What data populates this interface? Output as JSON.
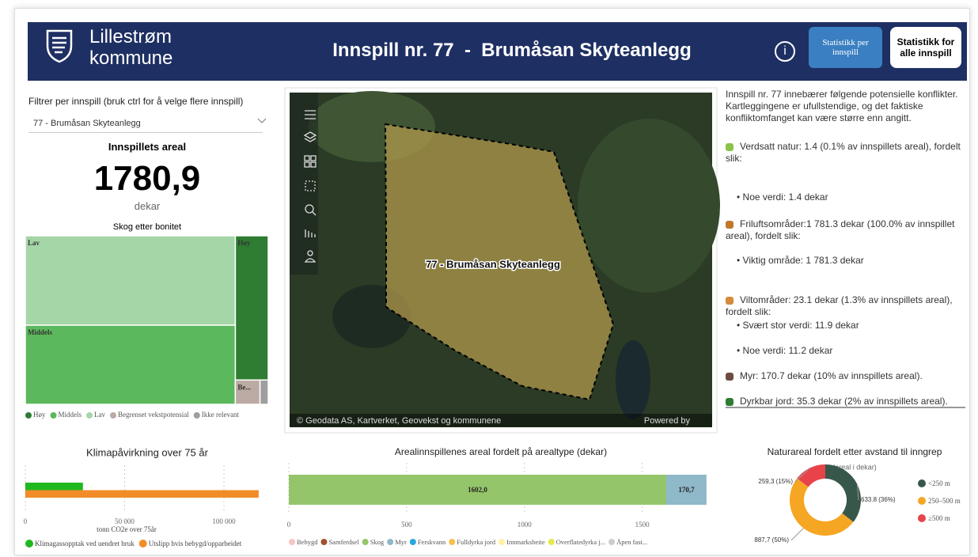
{
  "header": {
    "logo_top": "Lillestrøm",
    "logo_bottom": "kommune",
    "title": "Innspill nr. 77  -  Brumåsan Skyteanlegg",
    "info_icon": "i",
    "buttons": [
      "Statistikk per innspill",
      "Statistikk for alle innspill"
    ]
  },
  "filter": {
    "label": "Filtrer per innspill (bruk ctrl for å velge flere innspill)",
    "selected": "77 - Brumåsan Skyteanlegg"
  },
  "area_card": {
    "title": "Innspillets areal",
    "value": "1780,9",
    "unit": "dekar"
  },
  "map": {
    "label": "77  - Brumåsan Skyteanlegg",
    "attribution": "© Geodata AS, Kartverket, Geovekst og kommunene",
    "powered": "Powered by"
  },
  "conflicts": {
    "intro": "Innspill nr. 77 innebærer følgende potensielle konflikter. Kartleggingene er ufullstendige, og det faktiske konfliktomfanget kan være større enn angitt.",
    "items": [
      {
        "heading": "Verdsatt natur: 1.4 (0.1% av innspillets areal), fordelt slik:",
        "details": [
          "• Noe verdi: 1.4 dekar"
        ]
      },
      {
        "heading": "Friluftsområder:1 781.3 dekar (100.0% av innspillet areal), fordelt slik:",
        "details": [
          "• Viktig område: 1 781.3 dekar"
        ]
      },
      {
        "heading": "Viltområder: 23.1 dekar (1.3% av innspillets areal), fordelt slik:",
        "details": [
          "• Svært stor verdi: 11.9 dekar",
          "• Noe verdi: 11.2 dekar"
        ]
      },
      {
        "heading": "Myr: 170.7 dekar (10% av innspillets areal).",
        "details": []
      },
      {
        "heading": "Dyrkbar jord: 35.3 dekar (2% av innspillets areal).",
        "details": []
      }
    ]
  },
  "chart_data": [
    {
      "type": "treemap",
      "title": "Skog etter bonitet",
      "categories": [
        "Høy",
        "Middels",
        "Lav",
        "Begrenset vekstpotensial",
        "Ikke relevant"
      ],
      "tile_labels": [
        "Høy",
        "Middels",
        "Lav",
        "Be...",
        null
      ],
      "values": [
        190,
        665,
        750,
        24,
        8
      ],
      "colors": [
        "#2e7d32",
        "#5cb85c",
        "#a5d6a7",
        "#bcaaa4",
        "#9e9e9e"
      ]
    },
    {
      "type": "hbar",
      "title": "Klimapåvirkning over 75 år",
      "xlabel": "tonn CO2e over 75år",
      "series": [
        {
          "name": "Klimagassopptak ved uendret bruk",
          "color": "#1fb81f",
          "values": [
            29000
          ]
        },
        {
          "name": "Utslipp hvis bebygd/opparbeidet",
          "color": "#f28c28",
          "values": [
            117500
          ]
        }
      ],
      "xlim": [
        0,
        122000
      ],
      "xticks": [
        0,
        {
          "value": 50000,
          "label": "50 000"
        },
        {
          "value": 100000,
          "label": "100 000"
        }
      ],
      "grid": true
    },
    {
      "type": "stacked_hbar",
      "title": "Arealinnspillenes areal fordelt på arealtype (dekar)",
      "series": [
        {
          "name": "Bebygd",
          "color": "#f6c6c6",
          "values": [
            0
          ]
        },
        {
          "name": "Samferdsel",
          "color": "#a0522d",
          "values": [
            0
          ]
        },
        {
          "name": "Skog",
          "color": "#95c56a",
          "values": [
            1602.0
          ],
          "value_labels": [
            "1602,0"
          ]
        },
        {
          "name": "Myr",
          "color": "#8fb8c8",
          "values": [
            170.7
          ],
          "value_labels": [
            "170,7"
          ]
        },
        {
          "name": "Ferskvann",
          "color": "#29a8e0",
          "values": [
            0
          ]
        },
        {
          "name": "Fulldyrka jord",
          "color": "#f5c04a",
          "values": [
            0
          ]
        },
        {
          "name": "Innmarksbeite",
          "color": "#fff1a0",
          "values": [
            0
          ]
        },
        {
          "name": "Overflatedyrka j...",
          "color": "#e8e84a",
          "values": [
            0
          ]
        },
        {
          "name": "Åpen fast...",
          "color": "#cccccc",
          "values": [
            0
          ]
        }
      ],
      "xlim": [
        0,
        1800
      ],
      "xticks": [
        0,
        500,
        1000,
        1500
      ],
      "grid": true
    },
    {
      "type": "donut",
      "title": "Naturareal fordelt etter avstand til inngrep",
      "subtitle": "(areal i dekar)",
      "categories": [
        "<250 m",
        "250–500 m",
        "≥500 m"
      ],
      "values": [
        633.8,
        887.7,
        259.3
      ],
      "value_labels": [
        "633.8 (36%)",
        "887,7 (50%)",
        "259,3 (15%)"
      ],
      "colors": [
        "#37574a",
        "#f5a623",
        "#e8434a"
      ]
    }
  ]
}
